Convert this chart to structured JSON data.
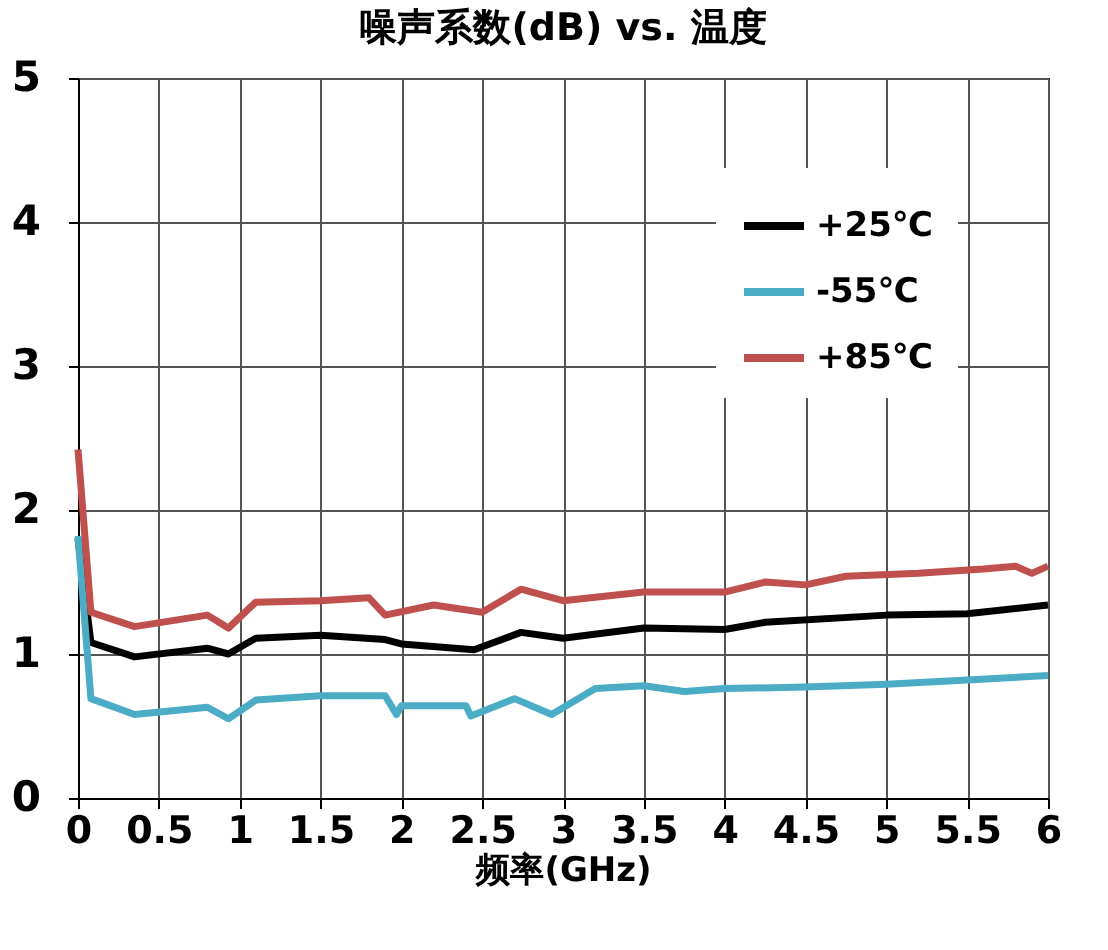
{
  "chart_data": {
    "type": "line",
    "title": "噪声系数(dB)  vs. 温度",
    "xlabel": "频率(GHz)",
    "xlim": [
      0,
      6
    ],
    "xticks": [
      0,
      0.5,
      1,
      1.5,
      2,
      2.5,
      3,
      3.5,
      4,
      4.5,
      5,
      5.5,
      6
    ],
    "ylim": [
      0,
      5
    ],
    "yticks": [
      0,
      1,
      2,
      3,
      4,
      5
    ],
    "grid": true,
    "legend": "top right",
    "line_style": "solid",
    "series": [
      {
        "name": "+25℃",
        "color": "#000000",
        "x": [
          0,
          0.08,
          0.35,
          0.8,
          0.93,
          1.1,
          1.5,
          1.9,
          2.0,
          2.45,
          2.74,
          3.0,
          3.5,
          4.0,
          4.25,
          5.0,
          5.5,
          6.0
        ],
        "values": [
          1.8,
          1.08,
          0.98,
          1.04,
          1.0,
          1.11,
          1.13,
          1.1,
          1.07,
          1.03,
          1.15,
          1.11,
          1.18,
          1.17,
          1.22,
          1.27,
          1.28,
          1.34
        ]
      },
      {
        "name": "-55℃",
        "color": "#4bacc6",
        "x": [
          0,
          0.08,
          0.35,
          0.8,
          0.93,
          1.1,
          1.5,
          1.9,
          1.97,
          2.0,
          2.4,
          2.43,
          2.7,
          2.93,
          3.2,
          3.5,
          3.75,
          4.0,
          4.5,
          5.0,
          5.5,
          6.0
        ],
        "values": [
          1.82,
          0.69,
          0.58,
          0.63,
          0.55,
          0.68,
          0.71,
          0.71,
          0.58,
          0.64,
          0.64,
          0.57,
          0.69,
          0.58,
          0.76,
          0.78,
          0.74,
          0.76,
          0.77,
          0.79,
          0.82,
          0.85
        ]
      },
      {
        "name": "+85℃",
        "color": "#c0504d",
        "x": [
          0,
          0.08,
          0.35,
          0.8,
          0.93,
          1.1,
          1.5,
          1.8,
          1.9,
          2.2,
          2.5,
          2.74,
          3.0,
          3.5,
          4.0,
          4.25,
          4.5,
          4.75,
          5.2,
          5.6,
          5.8,
          5.9,
          6.0
        ],
        "values": [
          2.42,
          1.29,
          1.19,
          1.27,
          1.18,
          1.36,
          1.37,
          1.39,
          1.27,
          1.34,
          1.29,
          1.45,
          1.37,
          1.43,
          1.43,
          1.5,
          1.48,
          1.54,
          1.56,
          1.59,
          1.61,
          1.56,
          1.61
        ]
      }
    ]
  }
}
